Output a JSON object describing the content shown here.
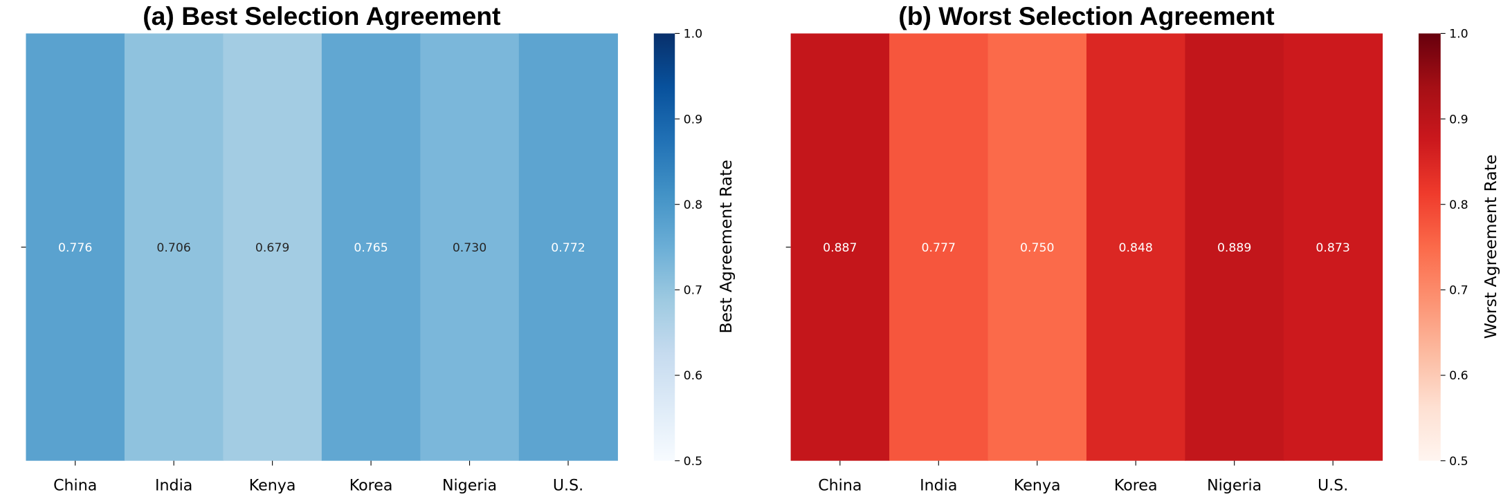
{
  "chart_data": [
    {
      "type": "heatmap",
      "title": "(a) Best Selection Agreement",
      "categories": [
        "China",
        "India",
        "Kenya",
        "Korea",
        "Nigeria",
        "U.S."
      ],
      "values": [
        0.776,
        0.706,
        0.679,
        0.765,
        0.73,
        0.772
      ],
      "value_labels": [
        "0.776",
        "0.706",
        "0.679",
        "0.765",
        "0.730",
        "0.772"
      ],
      "colormap": "Blues",
      "colorbar": {
        "label": "Best Agreement Rate",
        "range": [
          0.5,
          1.0
        ],
        "ticks": [
          "0.5",
          "0.6",
          "0.7",
          "0.8",
          "0.9",
          "1.0"
        ]
      },
      "colormap_stops": [
        "#f7fbff",
        "#deebf7",
        "#c6dbef",
        "#9ecae1",
        "#6baed6",
        "#4292c6",
        "#2171b5",
        "#08519c",
        "#08306b"
      ]
    },
    {
      "type": "heatmap",
      "title": "(b) Worst Selection Agreement",
      "categories": [
        "China",
        "India",
        "Kenya",
        "Korea",
        "Nigeria",
        "U.S."
      ],
      "values": [
        0.887,
        0.777,
        0.75,
        0.848,
        0.889,
        0.873
      ],
      "value_labels": [
        "0.887",
        "0.777",
        "0.750",
        "0.848",
        "0.889",
        "0.873"
      ],
      "colormap": "Reds",
      "colorbar": {
        "label": "Worst Agreement Rate",
        "range": [
          0.5,
          1.0
        ],
        "ticks": [
          "0.5",
          "0.6",
          "0.7",
          "0.8",
          "0.9",
          "1.0"
        ]
      },
      "colormap_stops": [
        "#fff5f0",
        "#fee0d2",
        "#fcbba1",
        "#fc9272",
        "#fb6a4a",
        "#ef3b2c",
        "#cb181d",
        "#a50f15",
        "#67000d"
      ]
    }
  ]
}
